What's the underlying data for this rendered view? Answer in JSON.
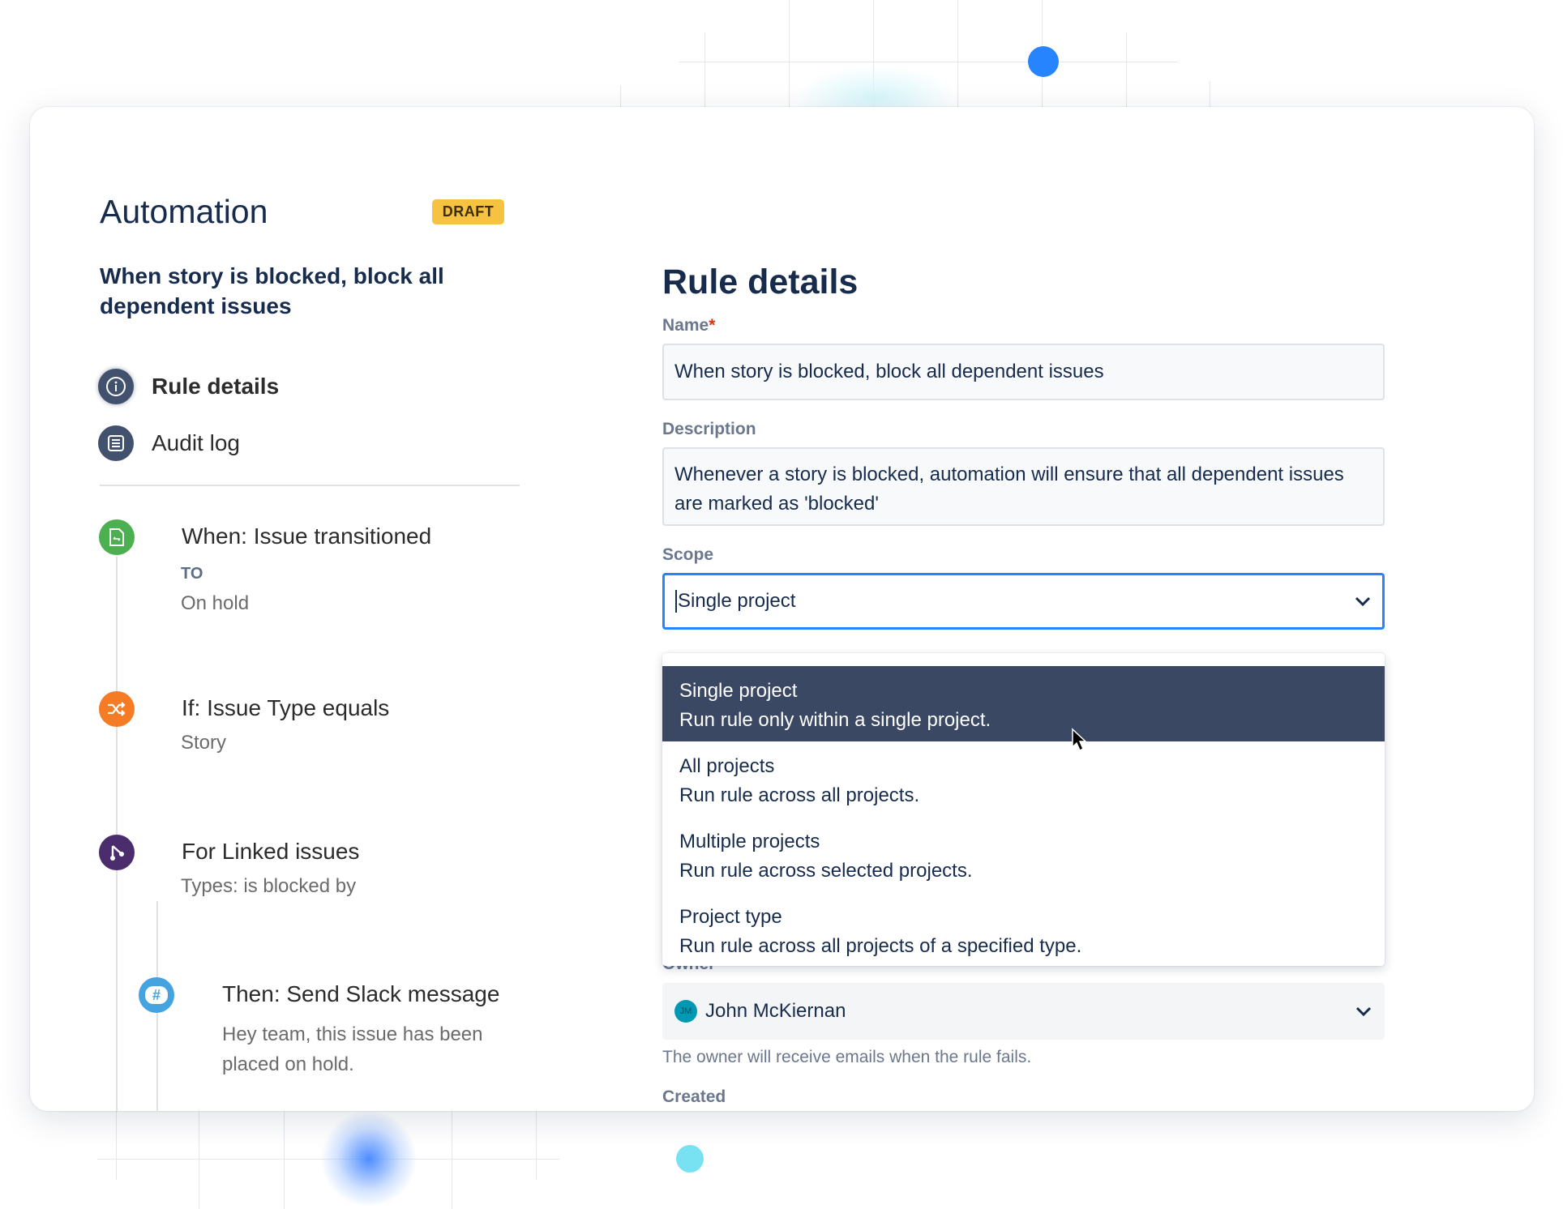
{
  "header": {
    "title": "Automation",
    "badge": "DRAFT",
    "rule_name": "When story is blocked, block all dependent issues"
  },
  "nav": [
    {
      "label": "Rule details",
      "icon": "info-icon",
      "active": true
    },
    {
      "label": "Audit log",
      "icon": "list-icon"
    }
  ],
  "steps": [
    {
      "title": "When: Issue transitioned",
      "label": "TO",
      "value": "On hold",
      "icon": "issue-transition-icon",
      "color": "#4caf50"
    },
    {
      "title": "If: Issue Type equals",
      "value": "Story",
      "icon": "shuffle-icon",
      "color": "#f57c24"
    },
    {
      "title": "For Linked issues",
      "value": "Types: is blocked by",
      "icon": "branch-icon",
      "color": "#4b2d6e"
    },
    {
      "title": "Then: Send Slack message",
      "value": "Hey team, this issue has been placed on hold.",
      "icon": "slack-icon",
      "color": "#45a3e0"
    }
  ],
  "form": {
    "heading": "Rule details",
    "name_label": "Name",
    "required": "*",
    "name_value": "When story is blocked, block all dependent issues",
    "description_label": "Description",
    "description_value": "Whenever a story is blocked, automation will ensure that all dependent issues are marked as 'blocked'",
    "scope_label": "Scope",
    "scope_value": "Single project",
    "scope_options": [
      {
        "label": "Single project",
        "desc": "Run rule only within a single project.",
        "selected": true
      },
      {
        "label": "All projects",
        "desc": "Run rule across all projects."
      },
      {
        "label": "Multiple projects",
        "desc": "Run rule across selected projects."
      },
      {
        "label": "Project type",
        "desc": "Run rule across all projects of a specified type."
      }
    ],
    "owner_label": "Owner",
    "owner_initials": "JM",
    "owner_value": "John McKiernan",
    "owner_help": "The owner will receive emails when the rule fails.",
    "created_label": "Created"
  },
  "colors": {
    "accent": "#2684ff",
    "selected": "#3b4863",
    "badge": "#f5c242"
  }
}
